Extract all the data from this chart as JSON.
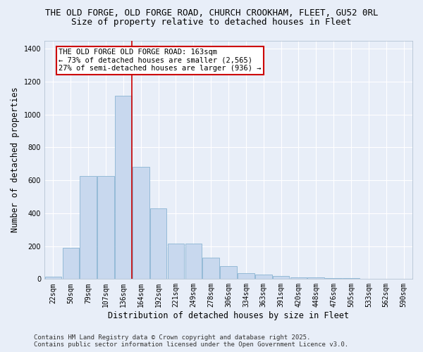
{
  "title_line1": "THE OLD FORGE, OLD FORGE ROAD, CHURCH CROOKHAM, FLEET, GU52 0RL",
  "title_line2": "Size of property relative to detached houses in Fleet",
  "xlabel": "Distribution of detached houses by size in Fleet",
  "ylabel": "Number of detached properties",
  "bar_color": "#c8d8ee",
  "bar_edge_color": "#7aabcc",
  "categories": [
    "22sqm",
    "50sqm",
    "79sqm",
    "107sqm",
    "136sqm",
    "164sqm",
    "192sqm",
    "221sqm",
    "249sqm",
    "278sqm",
    "306sqm",
    "334sqm",
    "363sqm",
    "391sqm",
    "420sqm",
    "448sqm",
    "476sqm",
    "505sqm",
    "533sqm",
    "562sqm",
    "590sqm"
  ],
  "values": [
    15,
    190,
    625,
    625,
    1115,
    680,
    430,
    215,
    215,
    130,
    80,
    35,
    28,
    18,
    12,
    8,
    4,
    4,
    2,
    1,
    1
  ],
  "ylim": [
    0,
    1450
  ],
  "yticks": [
    0,
    200,
    400,
    600,
    800,
    1000,
    1200,
    1400
  ],
  "vline_bin_index": 5,
  "annotation_line1": "THE OLD FORGE OLD FORGE ROAD: 163sqm",
  "annotation_line2": "← 73% of detached houses are smaller (2,565)",
  "annotation_line3": "27% of semi-detached houses are larger (936) →",
  "annotation_box_color": "#ffffff",
  "annotation_box_edge_color": "#cc0000",
  "vline_color": "#cc0000",
  "footer_line1": "Contains HM Land Registry data © Crown copyright and database right 2025.",
  "footer_line2": "Contains public sector information licensed under the Open Government Licence v3.0.",
  "background_color": "#e8eef8",
  "grid_color": "#ffffff",
  "title_fontsize": 9,
  "axis_label_fontsize": 8.5,
  "tick_fontsize": 7,
  "annotation_fontsize": 7.5,
  "footer_fontsize": 6.5
}
